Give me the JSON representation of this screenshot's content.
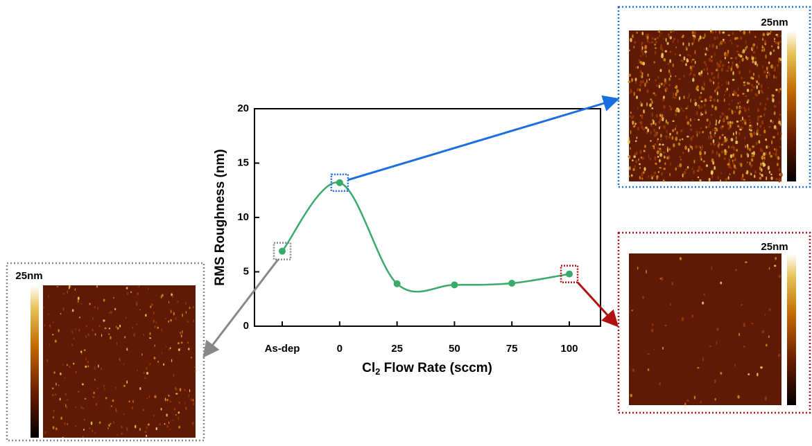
{
  "chart_data": {
    "type": "line",
    "categories": [
      "As-dep",
      "0",
      "25",
      "50",
      "75",
      "100"
    ],
    "values": [
      6.9,
      13.2,
      3.9,
      3.8,
      3.95,
      4.8
    ],
    "color": "#3aaa6a",
    "ylim": [
      0,
      20
    ],
    "yticks": [
      0,
      5,
      10,
      15,
      20
    ],
    "xlabel": [
      "Cl",
      "2",
      " Flow Rate (sccm)"
    ],
    "ylabel": "RMS Roughness (nm)",
    "insets": [
      {
        "label": "25nm"
      },
      {
        "label": "25nm"
      },
      {
        "label": "25nm"
      }
    ]
  }
}
